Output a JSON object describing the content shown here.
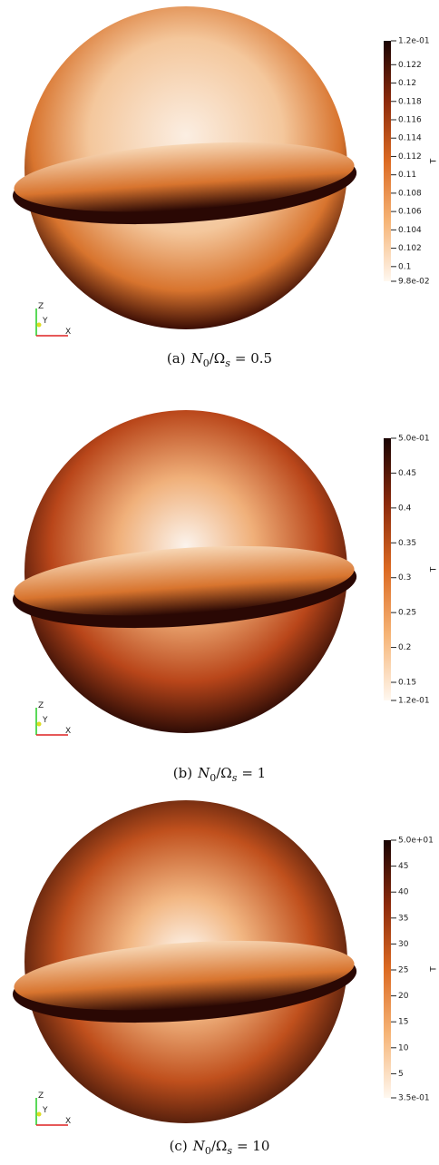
{
  "figure": {
    "panels": [
      {
        "caption": {
          "tag": "(a)",
          "n": "N",
          "n_sub": "0",
          "over": "/Ω",
          "omega_sub": "s",
          "eq": "= 0.5"
        },
        "colorbar": {
          "title": "T",
          "lim": [
            0.0984,
            0.1246
          ],
          "ticks": [
            {
              "value": 0.0984,
              "label": "9.8e-02"
            },
            0.1,
            0.102,
            0.104,
            0.106,
            0.108,
            0.11,
            0.112,
            0.114,
            0.116,
            0.118,
            0.12,
            0.122,
            {
              "value": 0.1246,
              "label": "1.2e-01"
            }
          ]
        },
        "axes": {
          "z": "Z",
          "y": "Y",
          "x": "X"
        }
      },
      {
        "caption": {
          "tag": "(b)",
          "n": "N",
          "n_sub": "0",
          "over": "/Ω",
          "omega_sub": "s",
          "eq": "= 1"
        },
        "colorbar": {
          "title": "T",
          "lim": [
            0.124,
            0.5
          ],
          "ticks": [
            {
              "value": 0.124,
              "label": "1.2e-01"
            },
            0.15,
            0.2,
            0.25,
            0.3,
            0.35,
            0.4,
            0.45,
            {
              "value": 0.5,
              "label": "5.0e-01"
            }
          ]
        },
        "axes": {
          "z": "Z",
          "y": "Y",
          "x": "X"
        }
      },
      {
        "caption": {
          "tag": "(c)",
          "n": "N",
          "n_sub": "0",
          "over": "/Ω",
          "omega_sub": "s",
          "eq": "= 10"
        },
        "colorbar": {
          "title": "T",
          "lim": [
            0.35,
            50
          ],
          "ticks": [
            {
              "value": 0.35,
              "label": "3.5e-01"
            },
            5,
            10,
            15,
            20,
            25,
            30,
            35,
            40,
            45,
            {
              "value": 50,
              "label": "5.0e+01"
            }
          ]
        },
        "axes": {
          "z": "Z",
          "y": "Y",
          "x": "X"
        }
      }
    ]
  }
}
